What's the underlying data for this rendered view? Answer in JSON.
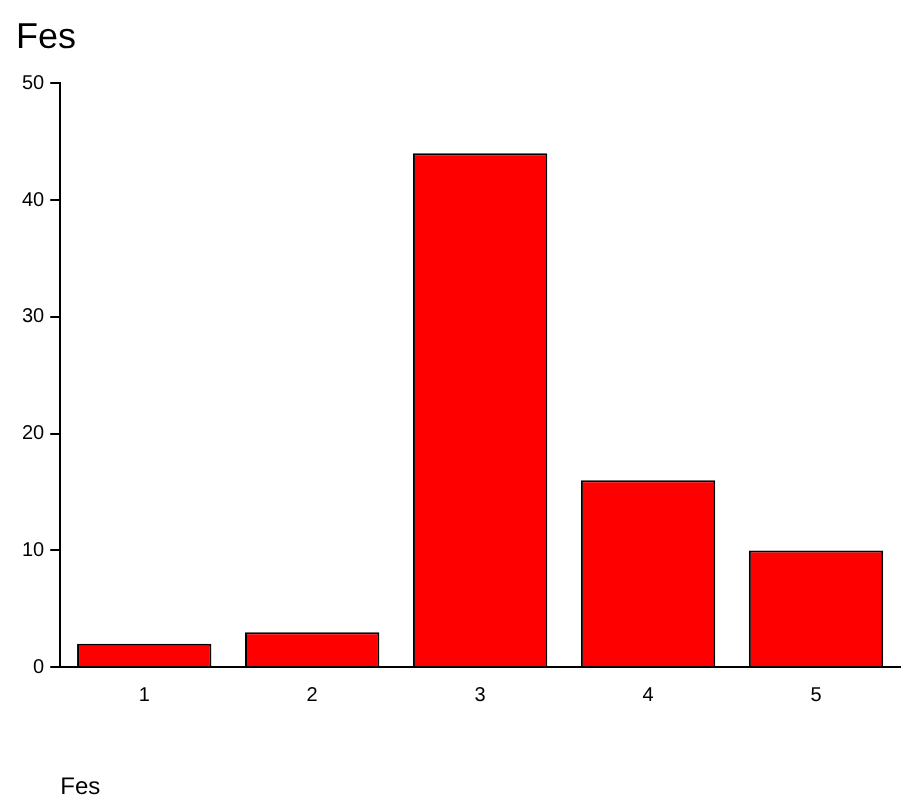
{
  "chart_data": {
    "type": "bar",
    "title": "Fes",
    "xlabel": "Fes",
    "categories": [
      "1",
      "2",
      "3",
      "4",
      "5"
    ],
    "values": [
      2,
      3,
      44,
      16,
      10
    ],
    "color": "#ff0000",
    "ylim": [
      0,
      50
    ],
    "yticks": [
      0,
      10,
      20,
      30,
      40,
      50
    ],
    "grid": false,
    "legend": false
  }
}
